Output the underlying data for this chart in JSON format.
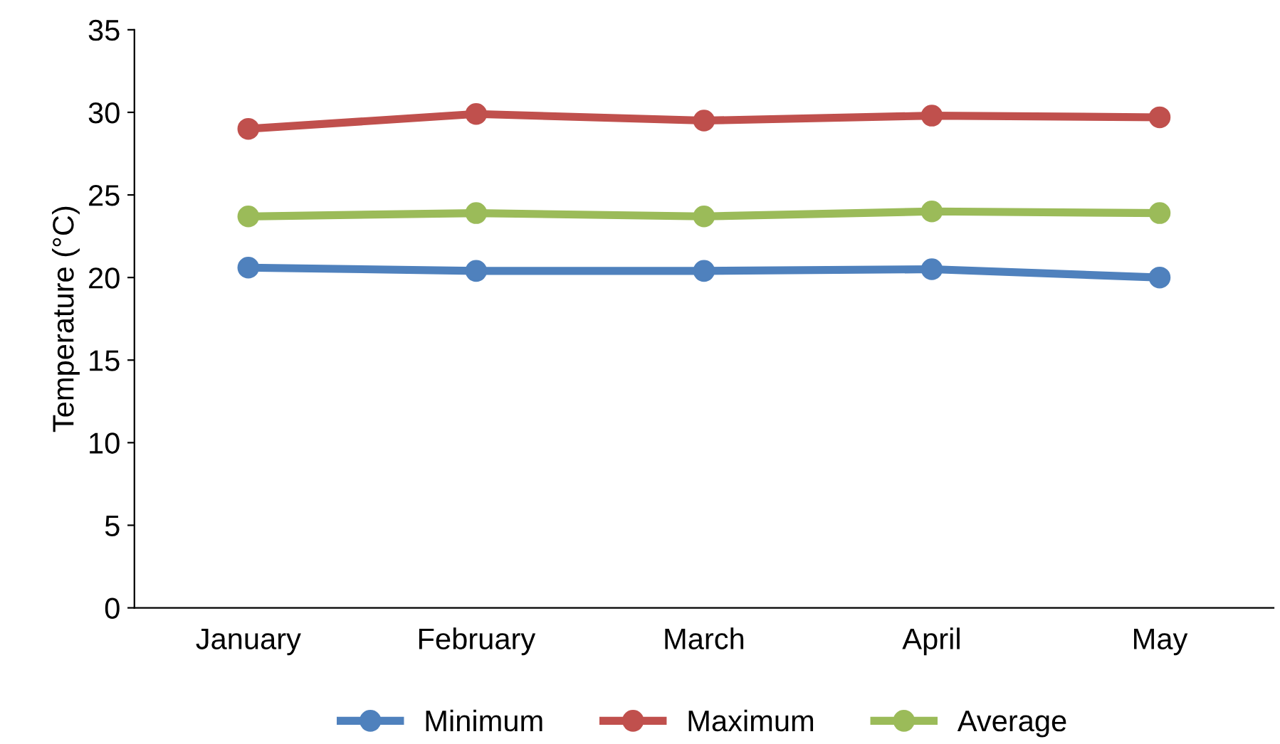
{
  "chart_data": {
    "type": "line",
    "ylabel": "Temperature (°C)",
    "categories": [
      "January",
      "February",
      "March",
      "April",
      "May"
    ],
    "series": [
      {
        "name": "Minimum",
        "color": "#4f81bd",
        "values": [
          20.6,
          20.4,
          20.4,
          20.5,
          20.0
        ]
      },
      {
        "name": "Maximum",
        "color": "#c0504d",
        "values": [
          29.0,
          29.9,
          29.5,
          29.8,
          29.7
        ]
      },
      {
        "name": "Average",
        "color": "#9bbb59",
        "values": [
          23.7,
          23.9,
          23.7,
          24.0,
          23.9
        ]
      }
    ],
    "ylim": [
      0,
      35
    ],
    "yticks": [
      0,
      5,
      10,
      15,
      20,
      25,
      30,
      35
    ],
    "grid": false,
    "legend": "bottom",
    "marker": "circle",
    "line_style": "solid"
  }
}
